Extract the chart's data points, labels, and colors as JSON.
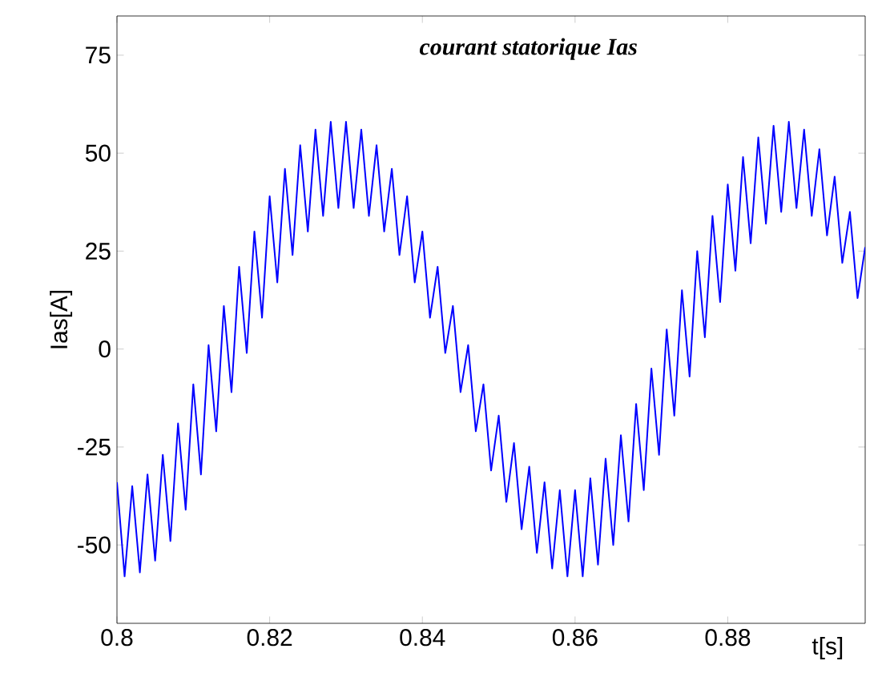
{
  "chart_data": {
    "type": "line",
    "title": "courant statorique Ias",
    "xlabel": "t[s]",
    "ylabel": "Ias[A]",
    "x": [
      0.8,
      0.801,
      0.802,
      0.803,
      0.804,
      0.805,
      0.806,
      0.807,
      0.808,
      0.809,
      0.81,
      0.811,
      0.812,
      0.813,
      0.814,
      0.815,
      0.816,
      0.817,
      0.818,
      0.819,
      0.82,
      0.821,
      0.822,
      0.823,
      0.824,
      0.825,
      0.826,
      0.827,
      0.828,
      0.829,
      0.83,
      0.831,
      0.832,
      0.833,
      0.834,
      0.835,
      0.836,
      0.837,
      0.838,
      0.839,
      0.84,
      0.841,
      0.842,
      0.843,
      0.844,
      0.845,
      0.846,
      0.847,
      0.848,
      0.849,
      0.85,
      0.851,
      0.852,
      0.853,
      0.854,
      0.855,
      0.856,
      0.857,
      0.858,
      0.859,
      0.86,
      0.861,
      0.862,
      0.863,
      0.864,
      0.865,
      0.866,
      0.867,
      0.868,
      0.869,
      0.87,
      0.871,
      0.872,
      0.873,
      0.874,
      0.875,
      0.876,
      0.877,
      0.878,
      0.879,
      0.88,
      0.881,
      0.882,
      0.883,
      0.884,
      0.885,
      0.886,
      0.887,
      0.888,
      0.889,
      0.89,
      0.891,
      0.892,
      0.893,
      0.894,
      0.895,
      0.896,
      0.897,
      0.898
    ],
    "series": [
      {
        "color": "#0000ff",
        "values": [
          -34,
          -58,
          -35,
          -57,
          -32,
          -54,
          -27,
          -49,
          -19,
          -41,
          -9,
          -32,
          1,
          -21,
          11,
          -11,
          21,
          -1,
          30,
          8,
          39,
          17,
          46,
          24,
          52,
          30,
          56,
          34,
          58,
          36,
          58,
          36,
          56,
          34,
          52,
          30,
          46,
          24,
          39,
          17,
          30,
          8,
          21,
          -1,
          11,
          -11,
          1,
          -21,
          -9,
          -31,
          -17,
          -39,
          -24,
          -46,
          -30,
          -52,
          -34,
          -56,
          -36,
          -58,
          -36,
          -58,
          -33,
          -55,
          -28,
          -50,
          -22,
          -44,
          -14,
          -36,
          -5,
          -27,
          5,
          -17,
          15,
          -7,
          25,
          3,
          34,
          12,
          42,
          20,
          49,
          27,
          54,
          32,
          57,
          35,
          58,
          36,
          56,
          34,
          51,
          29,
          44,
          22,
          35,
          13,
          26
        ]
      }
    ],
    "xlim": [
      0.8,
      0.898
    ],
    "ylim": [
      -70,
      85
    ],
    "xticks": [
      0.8,
      0.82,
      0.84,
      0.86,
      0.88
    ],
    "yticks": [
      -50,
      -25,
      0,
      25,
      50,
      75
    ],
    "grid": false,
    "marker": "none",
    "line_style": "solid"
  }
}
